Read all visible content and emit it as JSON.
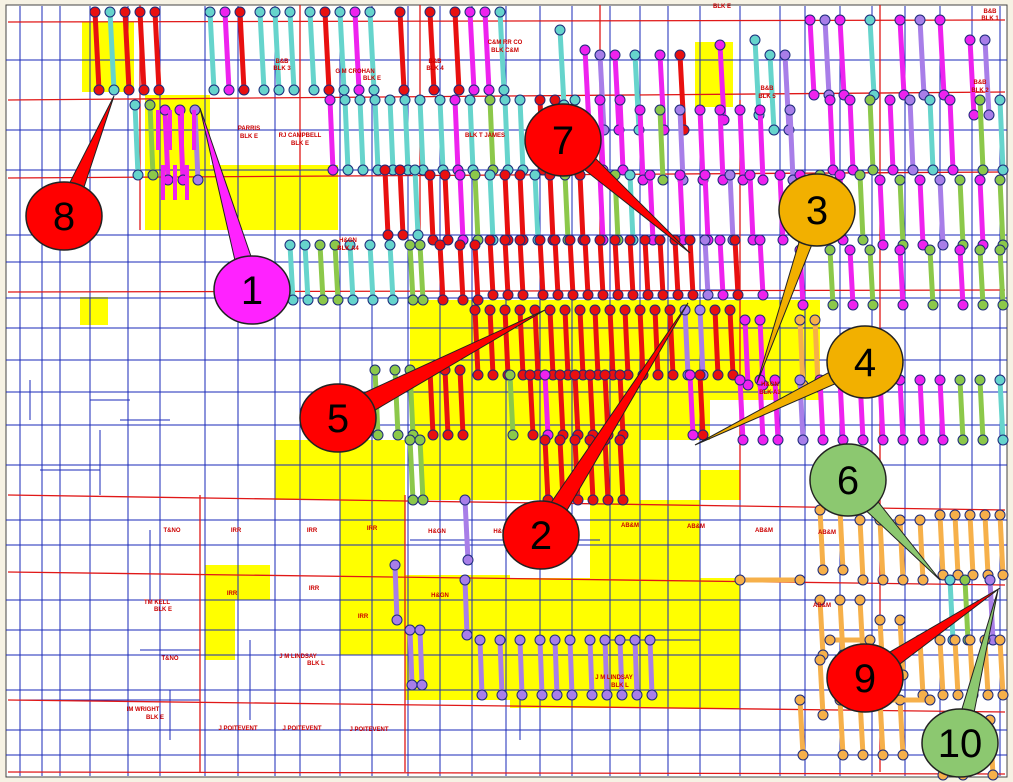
{
  "map": {
    "colors": {
      "background": "#ffffff",
      "survey_lines": "#1a2ab8",
      "block_lines": "#e01818",
      "lease_fill": "#ffff00",
      "label_text": "#cc0000",
      "well_red": "#e81010",
      "well_cyan": "#66d4cc",
      "well_magenta": "#ee22ee",
      "well_green": "#8cc84a",
      "well_purple": "#a87ee8",
      "well_orange": "#f6b04a",
      "marker_red": "#ff0000",
      "marker_magenta": "#ff22ff",
      "marker_orange": "#f2b000",
      "marker_green": "#8cc870"
    },
    "labels": [
      {
        "id": "blk-e-top",
        "text": "BLK E"
      },
      {
        "id": "bb-blk1",
        "text": "B&B"
      },
      {
        "id": "bb-blk1b",
        "text": "BLK 1"
      },
      {
        "id": "bb-blk3",
        "text": "B&B"
      },
      {
        "id": "bb-blk3b",
        "text": "BLK 3"
      },
      {
        "id": "mcrohan",
        "text": "G M CROHAN"
      },
      {
        "id": "mcrohan-b",
        "text": "BLK E"
      },
      {
        "id": "bb-blk4",
        "text": "B&B"
      },
      {
        "id": "bb-blk4b",
        "text": "BLK 4"
      },
      {
        "id": "cm-rr",
        "text": "C&M RR CO"
      },
      {
        "id": "cm-rr-b",
        "text": "BLK C&M"
      },
      {
        "id": "bb-blk5",
        "text": "B&B"
      },
      {
        "id": "bb-blk5b",
        "text": "BLK 5"
      },
      {
        "id": "bb-blk2",
        "text": "B&B"
      },
      {
        "id": "bb-blk2b",
        "text": "BLK 2"
      },
      {
        "id": "parris",
        "text": "PARRIS"
      },
      {
        "id": "parris-b",
        "text": "BLK E"
      },
      {
        "id": "campbell",
        "text": "RJ CAMPBELL"
      },
      {
        "id": "campbell-b",
        "text": "BLK E"
      },
      {
        "id": "james",
        "text": "BLK T JAMES"
      },
      {
        "id": "hgn-a4",
        "text": "H&GN"
      },
      {
        "id": "hgn-a4b",
        "text": "BLK A4"
      },
      {
        "id": "hgn-a3",
        "text": "H&GN"
      },
      {
        "id": "hgn-a3b",
        "text": "BLK A3"
      },
      {
        "id": "tno1",
        "text": "T&NO"
      },
      {
        "id": "irr1",
        "text": "IRR"
      },
      {
        "id": "irr2",
        "text": "IRR"
      },
      {
        "id": "irr3",
        "text": "IRR"
      },
      {
        "id": "hgn1",
        "text": "H&GN"
      },
      {
        "id": "hgn2",
        "text": "H&G"
      },
      {
        "id": "abm1",
        "text": "AB&M"
      },
      {
        "id": "abm2",
        "text": "AB&M"
      },
      {
        "id": "abm3",
        "text": "AB&M"
      },
      {
        "id": "abm4",
        "text": "AB&M"
      },
      {
        "id": "abm5",
        "text": "AB&M"
      },
      {
        "id": "tmkell",
        "text": "TM KELL"
      },
      {
        "id": "tmkell-b",
        "text": "BLK E"
      },
      {
        "id": "irr4",
        "text": "IRR"
      },
      {
        "id": "irr5",
        "text": "IRR"
      },
      {
        "id": "irr6",
        "text": "IRR"
      },
      {
        "id": "hgn3",
        "text": "H&GN"
      },
      {
        "id": "tno2",
        "text": "T&NO"
      },
      {
        "id": "lindsay1",
        "text": "J M  LINDSAY"
      },
      {
        "id": "lindsay1-b",
        "text": "BLK L"
      },
      {
        "id": "lindsay2",
        "text": "J M LINDSAY"
      },
      {
        "id": "lindsay2-b",
        "text": "BLK L"
      },
      {
        "id": "wright",
        "text": "IM WRIGHT"
      },
      {
        "id": "wright-b",
        "text": "BLK E"
      },
      {
        "id": "poit1",
        "text": "J POITEVENT"
      },
      {
        "id": "poit2",
        "text": "J POITEVENT"
      },
      {
        "id": "poit3",
        "text": "J POITEVENT"
      }
    ],
    "markers": [
      {
        "id": "1",
        "label": "1",
        "color": "magenta"
      },
      {
        "id": "2",
        "label": "2",
        "color": "red"
      },
      {
        "id": "3",
        "label": "3",
        "color": "orange"
      },
      {
        "id": "4",
        "label": "4",
        "color": "orange"
      },
      {
        "id": "5",
        "label": "5",
        "color": "red"
      },
      {
        "id": "6",
        "label": "6",
        "color": "green"
      },
      {
        "id": "7",
        "label": "7",
        "color": "red"
      },
      {
        "id": "8",
        "label": "8",
        "color": "red"
      },
      {
        "id": "9",
        "label": "9",
        "color": "red"
      },
      {
        "id": "10",
        "label": "10",
        "color": "green"
      }
    ]
  }
}
